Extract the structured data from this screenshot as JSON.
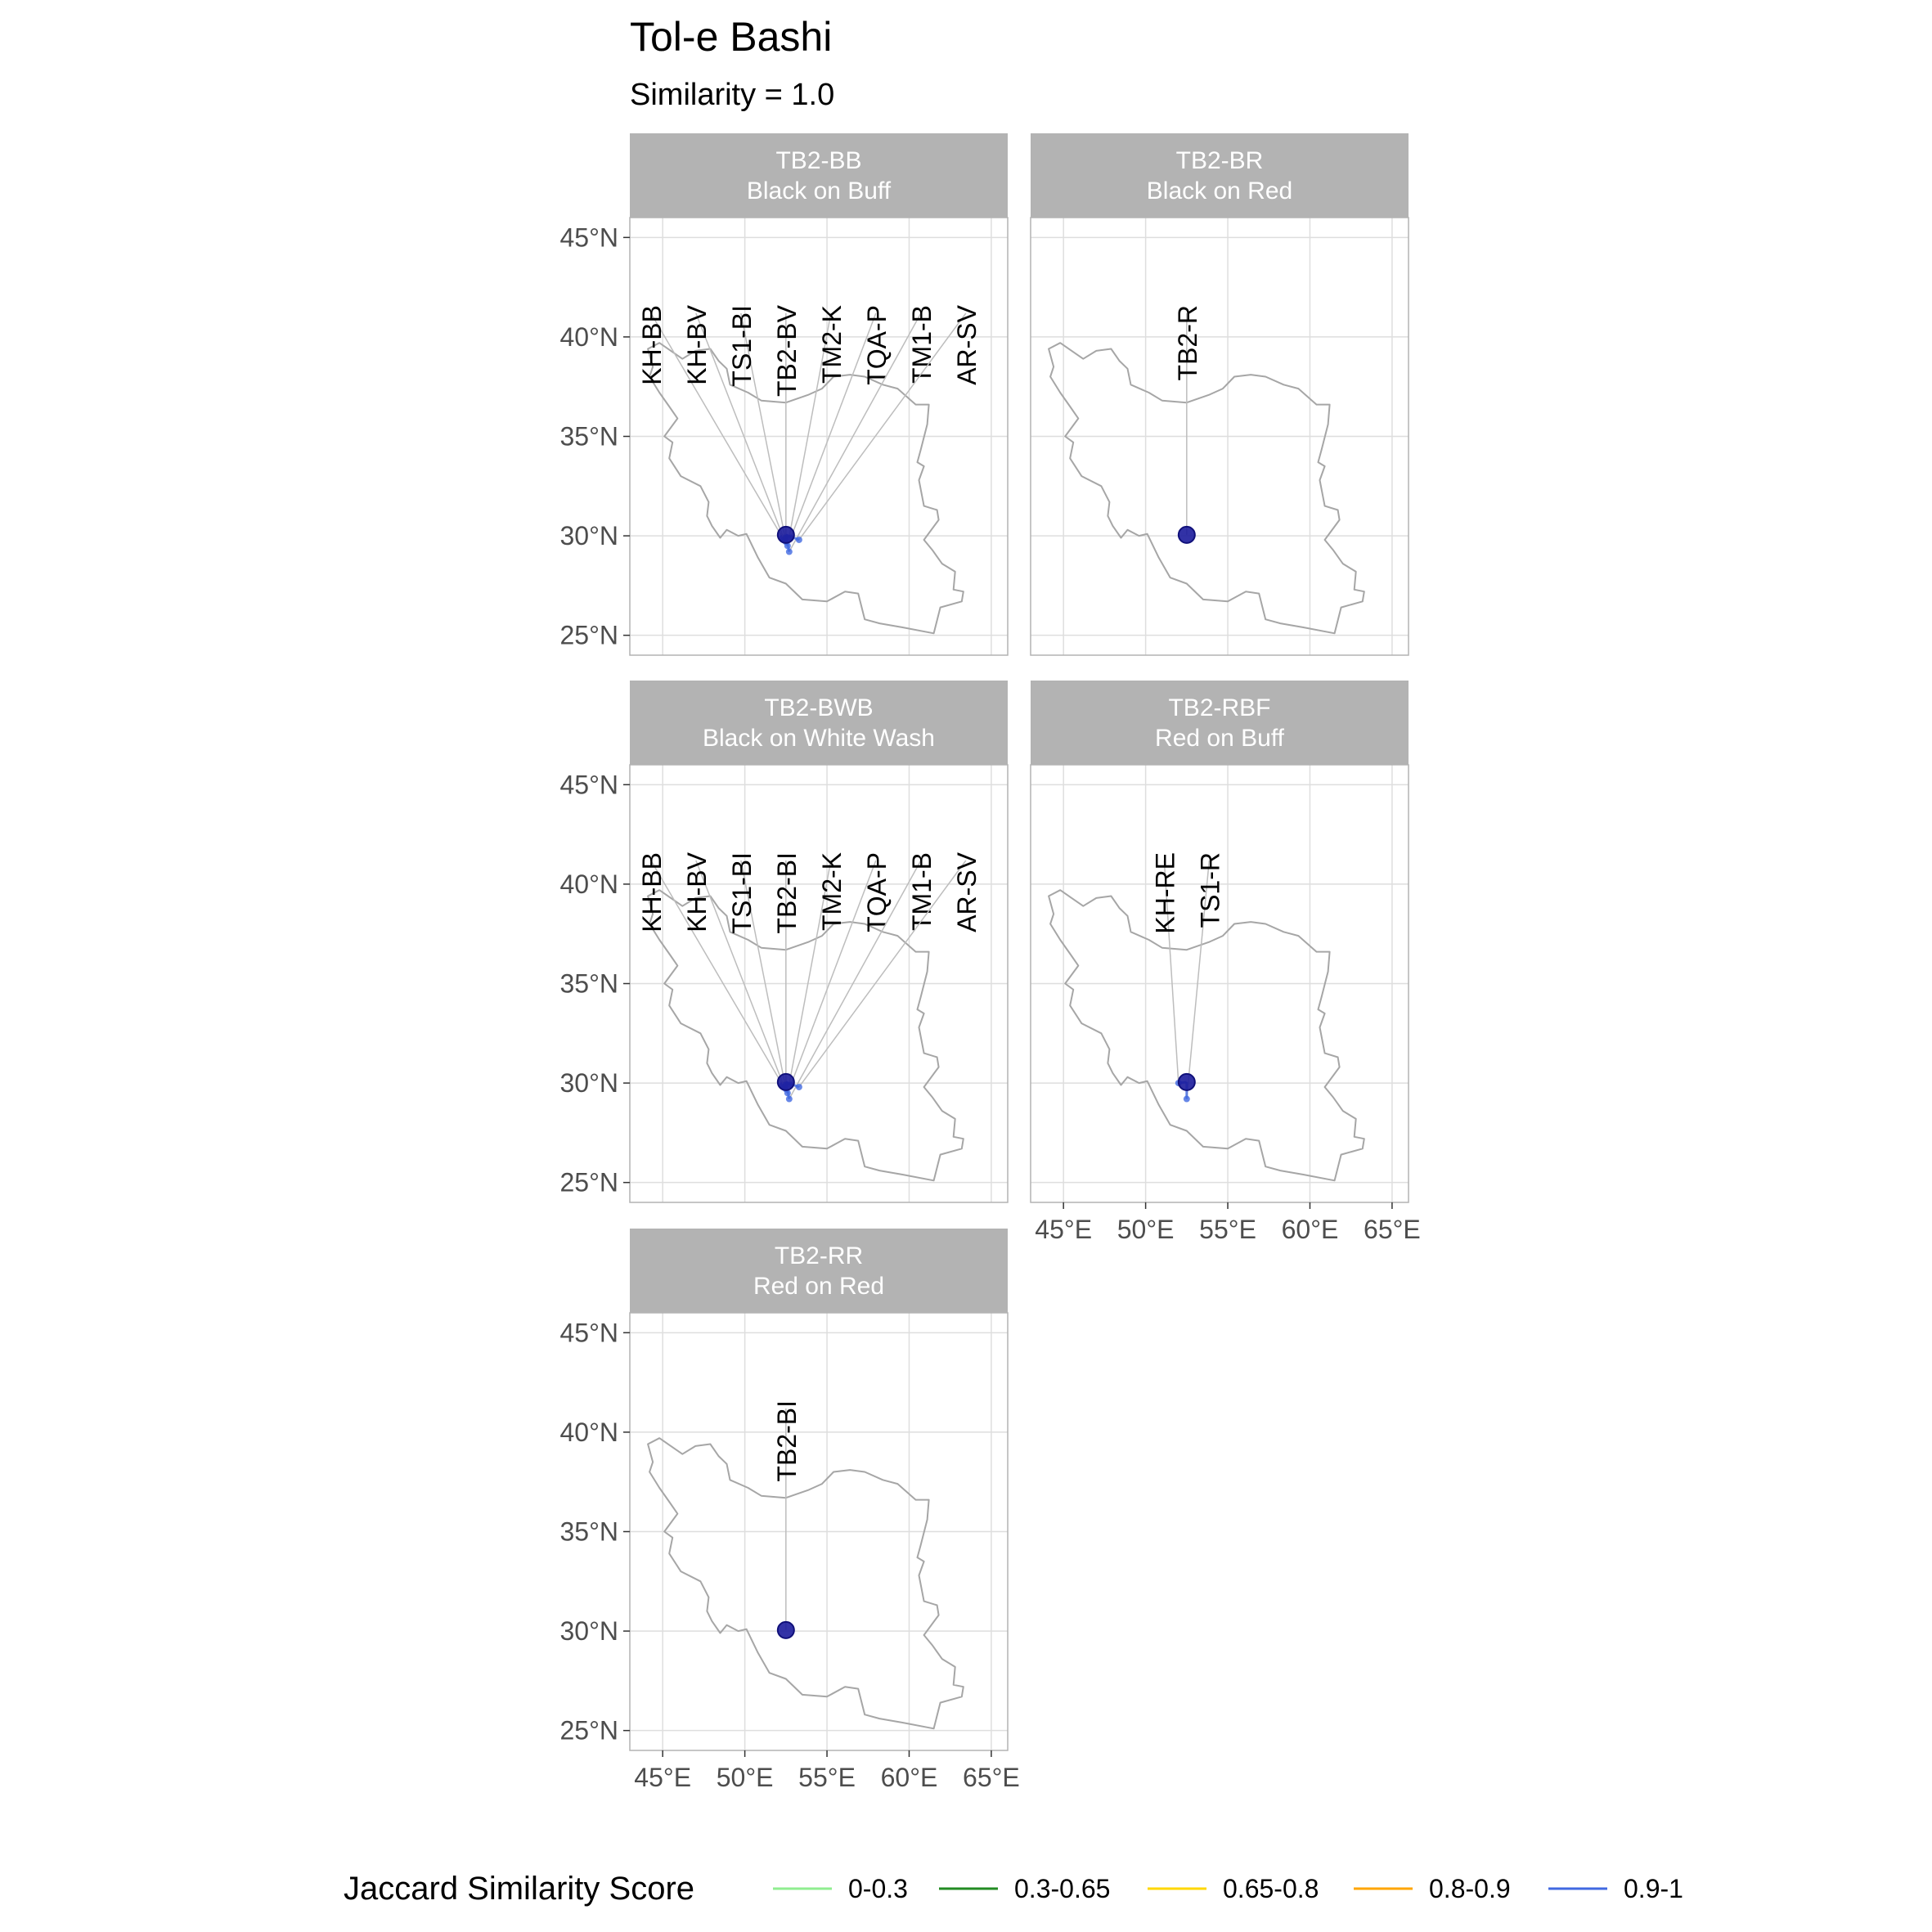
{
  "title": "Tol-e Bashi",
  "subtitle": "Similarity = 1.0",
  "x_ticks": [
    "45°E",
    "50°E",
    "55°E",
    "60°E",
    "65°E"
  ],
  "y_ticks": [
    "45°N",
    "40°N",
    "35°N",
    "30°N",
    "25°N"
  ],
  "legend": {
    "title": "Jaccard Similarity Score",
    "items": [
      {
        "label": "0-0.3",
        "color": "#90ee90"
      },
      {
        "label": "0.3-0.65",
        "color": "#228b22"
      },
      {
        "label": "0.65-0.8",
        "color": "#ffd700"
      },
      {
        "label": "0.8-0.9",
        "color": "#ffa500"
      },
      {
        "label": "0.9-1",
        "color": "#4169e1"
      }
    ]
  },
  "colors": {
    "strip": "#b3b3b3",
    "grid": "#dedede",
    "border": "#b3b3b3",
    "country_outline": "#a6a6a6",
    "point": "#1c1c9c",
    "link": "#4169e1"
  },
  "chart_data": {
    "type": "map",
    "title": "Tol-e Bashi",
    "subtitle": "Similarity = 1.0",
    "xlim": [
      43,
      66
    ],
    "ylim": [
      24,
      46
    ],
    "origin": {
      "lon": 52.5,
      "lat": 30.05
    },
    "panels": [
      {
        "id": "TB2-BB",
        "name": "Black on Buff",
        "sites": [
          {
            "label": "KH-BB",
            "lon": 52.3,
            "lat": 29.9
          },
          {
            "label": "KH-BV",
            "lon": 52.4,
            "lat": 29.8
          },
          {
            "label": "TS1-BI",
            "lon": 52.5,
            "lat": 29.7
          },
          {
            "label": "TB2-BV",
            "lon": 52.5,
            "lat": 29.9
          },
          {
            "label": "TM2-K",
            "lon": 52.6,
            "lat": 29.5
          },
          {
            "label": "TQA-P",
            "lon": 52.8,
            "lat": 29.9
          },
          {
            "label": "TM1-B",
            "lon": 52.7,
            "lat": 29.2
          },
          {
            "label": "AR-SV",
            "lon": 53.3,
            "lat": 29.8
          }
        ]
      },
      {
        "id": "TB2-BR",
        "name": "Black on Red",
        "sites": [
          {
            "label": "TB2-R",
            "lon": 52.5,
            "lat": 30.05
          }
        ]
      },
      {
        "id": "TB2-BWB",
        "name": "Black on White Wash",
        "sites": [
          {
            "label": "KH-BB",
            "lon": 52.3,
            "lat": 29.9
          },
          {
            "label": "KH-BV",
            "lon": 52.4,
            "lat": 29.8
          },
          {
            "label": "TS1-BI",
            "lon": 52.5,
            "lat": 29.7
          },
          {
            "label": "TB2-BI",
            "lon": 52.5,
            "lat": 29.9
          },
          {
            "label": "TM2-K",
            "lon": 52.6,
            "lat": 29.5
          },
          {
            "label": "TQA-P",
            "lon": 52.8,
            "lat": 29.9
          },
          {
            "label": "TM1-B",
            "lon": 52.7,
            "lat": 29.2
          },
          {
            "label": "AR-SV",
            "lon": 53.3,
            "lat": 29.8
          }
        ]
      },
      {
        "id": "TB2-RBF",
        "name": "Red on Buff",
        "sites": [
          {
            "label": "KH-RE",
            "lon": 52.0,
            "lat": 30.0
          },
          {
            "label": "TS1-R",
            "lon": 52.5,
            "lat": 29.2
          }
        ]
      },
      {
        "id": "TB2-RR",
        "name": "Red on Red",
        "sites": [
          {
            "label": "TB2-BI",
            "lon": 52.5,
            "lat": 30.05
          }
        ]
      }
    ]
  }
}
